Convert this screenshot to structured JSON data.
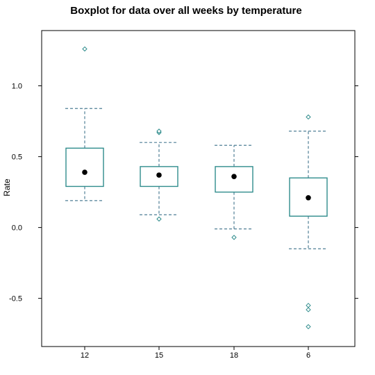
{
  "chart_data": {
    "type": "boxplot",
    "title": "Boxplot for data over all weeks by temperature",
    "xlabel": "",
    "ylabel": "Rate",
    "categories": [
      "12",
      "15",
      "18",
      "6"
    ],
    "ylim": [
      -0.84,
      1.39
    ],
    "yticks": [
      1.0,
      0.5,
      0.0,
      -0.5
    ],
    "ytick_labels": [
      "1.0",
      "0.5",
      "0.0",
      "-0.5"
    ],
    "grid": false,
    "legend": "none",
    "colors": {
      "box": "#2f8c8c",
      "whisker": "#4f7f95",
      "median": "#000000",
      "outlier": "#2f8c8c",
      "frame": "#000000"
    },
    "boxes": [
      {
        "category": "12",
        "whisker_low": 0.19,
        "q1": 0.29,
        "median": 0.39,
        "q3": 0.56,
        "whisker_high": 0.84,
        "outliers": [
          1.26
        ]
      },
      {
        "category": "15",
        "whisker_low": 0.09,
        "q1": 0.29,
        "median": 0.37,
        "q3": 0.43,
        "whisker_high": 0.6,
        "outliers": [
          0.06,
          0.67,
          0.68
        ]
      },
      {
        "category": "18",
        "whisker_low": -0.01,
        "q1": 0.25,
        "median": 0.36,
        "q3": 0.43,
        "whisker_high": 0.58,
        "outliers": [
          -0.07
        ]
      },
      {
        "category": "6",
        "whisker_low": -0.15,
        "q1": 0.08,
        "median": 0.21,
        "q3": 0.35,
        "whisker_high": 0.68,
        "outliers": [
          0.78,
          -0.55,
          -0.58,
          -0.7
        ]
      }
    ]
  }
}
